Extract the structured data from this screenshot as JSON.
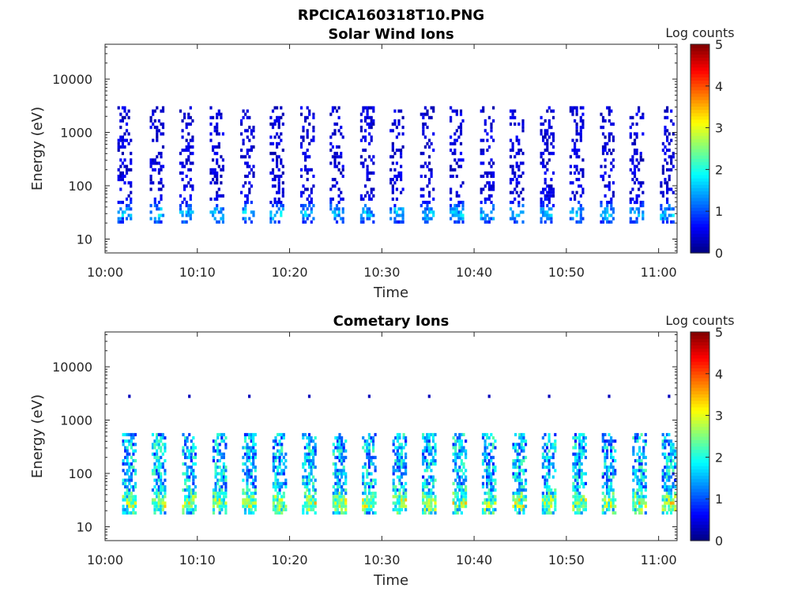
{
  "figure_title": "RPCICA160318T10.PNG",
  "colors": {
    "colormap": "jet",
    "axis": "#262626",
    "background": "#ffffff"
  },
  "chart_data": [
    {
      "type": "heatmap",
      "title": "Solar Wind Ions",
      "xlabel": "Time",
      "ylabel": "Energy (eV)",
      "yscale": "log",
      "ylim": [
        5.5,
        45000
      ],
      "xlim": [
        "10:00",
        "11:02"
      ],
      "x_ticks": [
        "10:00",
        "10:10",
        "10:20",
        "10:30",
        "10:40",
        "10:50",
        "11:00"
      ],
      "y_ticks": [
        "10",
        "100",
        "1000",
        "10000"
      ],
      "grid": false,
      "colorbar": {
        "label": "Log counts",
        "range": [
          0,
          5
        ],
        "ticks": [
          "0",
          "1",
          "2",
          "3",
          "4",
          "5"
        ]
      },
      "sweep_times": [
        "10:02",
        "10:05.5",
        "10:08.7",
        "10:12",
        "10:15.3",
        "10:18.5",
        "10:21.8",
        "10:25",
        "10:28.3",
        "10:31.5",
        "10:34.8",
        "10:38",
        "10:41.3",
        "10:44.5",
        "10:47.8",
        "10:51",
        "10:54.3",
        "10:57.5",
        "11:00.8"
      ],
      "sweep_energy_range_eV": [
        20,
        3000
      ],
      "peak_energy_eV": 30,
      "peak_log_counts": 1.8,
      "typical_log_counts": 0.5
    },
    {
      "type": "heatmap",
      "title": "Cometary Ions",
      "xlabel": "Time",
      "ylabel": "Energy (eV)",
      "yscale": "log",
      "ylim": [
        5.5,
        45000
      ],
      "xlim": [
        "10:00",
        "11:02"
      ],
      "x_ticks": [
        "10:00",
        "10:10",
        "10:20",
        "10:30",
        "10:40",
        "10:50",
        "11:00"
      ],
      "y_ticks": [
        "10",
        "100",
        "1000",
        "10000"
      ],
      "grid": false,
      "colorbar": {
        "label": "Log counts",
        "range": [
          0,
          5
        ],
        "ticks": [
          "0",
          "1",
          "2",
          "3",
          "4",
          "5"
        ]
      },
      "sweep_times": [
        "10:02.5",
        "10:05.7",
        "10:09",
        "10:12.3",
        "10:15.5",
        "10:18.8",
        "10:22",
        "10:25.3",
        "10:28.5",
        "10:31.8",
        "10:35",
        "10:38.3",
        "10:41.5",
        "10:44.8",
        "10:48",
        "10:51.3",
        "10:54.5",
        "10:57.8",
        "11:01"
      ],
      "sweep_energy_range_eV": [
        18,
        600
      ],
      "peak_energy_eV": 28,
      "peak_log_counts": 3.0,
      "typical_log_counts": 1.8,
      "sparse_high_energy_eV": 3000
    }
  ]
}
